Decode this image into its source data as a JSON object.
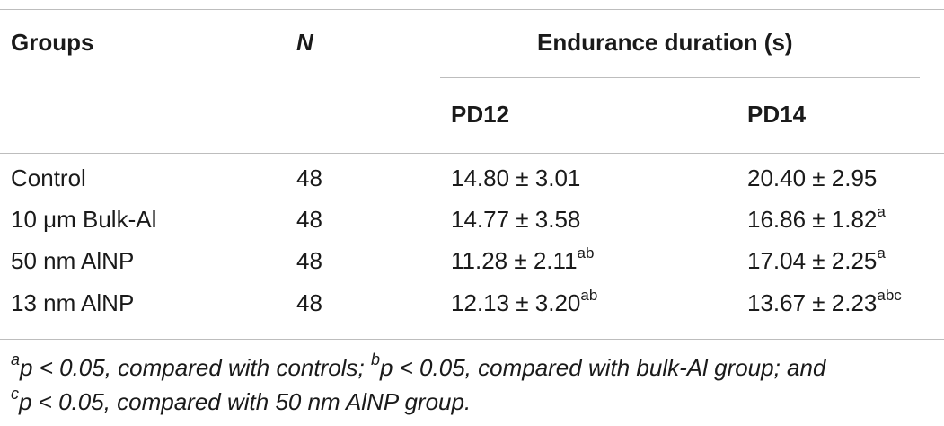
{
  "table": {
    "headers": {
      "groups": "Groups",
      "n": "N",
      "endurance": "Endurance duration (s)",
      "pd12": "PD12",
      "pd14": "PD14"
    },
    "rows": [
      {
        "group": "Control",
        "n": "48",
        "pd12": "14.80 ± 3.01",
        "pd12_sup": "",
        "pd14": "20.40 ± 2.95",
        "pd14_sup": ""
      },
      {
        "group": "10 μm Bulk-Al",
        "n": "48",
        "pd12": "14.77 ± 3.58",
        "pd12_sup": "",
        "pd14": "16.86 ± 1.82",
        "pd14_sup": "a"
      },
      {
        "group": "50 nm AlNP",
        "n": "48",
        "pd12": "11.28 ± 2.11",
        "pd12_sup": "ab",
        "pd14": "17.04 ± 2.25",
        "pd14_sup": "a"
      },
      {
        "group": "13 nm AlNP",
        "n": "48",
        "pd12": "12.13 ± 3.20",
        "pd12_sup": "ab",
        "pd14": "13.67 ± 2.23",
        "pd14_sup": "abc"
      }
    ]
  },
  "footnote": {
    "a_mark": "a",
    "a_text": "p < 0.05, compared with controls; ",
    "b_mark": "b",
    "b_text": "p < 0.05, compared with bulk-Al group; and",
    "c_mark": "c",
    "c_text": "p < 0.05, compared with 50 nm AlNP group."
  }
}
